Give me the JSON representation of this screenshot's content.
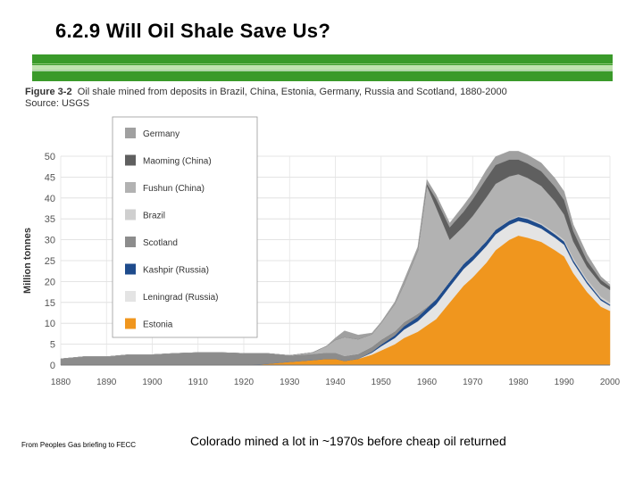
{
  "slide": {
    "title": "6.2.9 Will Oil Shale Save Us?",
    "figure_number": "Figure 3-2",
    "figure_caption": "Oil shale mined from deposits in Brazil, China, Estonia, Germany, Russia and Scotland, 1880-2000",
    "source": "Source: USGS",
    "footnote": "From Peoples Gas briefing to FECC",
    "bottom_caption": "Colorado mined a lot in ~1970s before cheap oil returned",
    "accent_color": "#3a9a2a"
  },
  "chart_data": {
    "type": "area",
    "stacked": true,
    "title": "",
    "xlabel": "",
    "ylabel": "Million tonnes",
    "xlim": [
      1880,
      2000
    ],
    "ylim": [
      0,
      50
    ],
    "x_ticks": [
      "1880",
      "1890",
      "1900",
      "1910",
      "1920",
      "1930",
      "1940",
      "1950",
      "1960",
      "1970",
      "1980",
      "1990",
      "2000"
    ],
    "y_ticks": [
      "0",
      "5",
      "10",
      "15",
      "20",
      "25",
      "30",
      "35",
      "40",
      "45",
      "50"
    ],
    "grid": true,
    "legend_position": "top-left",
    "x": [
      1880,
      1885,
      1890,
      1895,
      1900,
      1905,
      1910,
      1915,
      1920,
      1925,
      1930,
      1935,
      1938,
      1940,
      1942,
      1945,
      1948,
      1950,
      1953,
      1955,
      1958,
      1960,
      1962,
      1965,
      1968,
      1970,
      1973,
      1975,
      1978,
      1980,
      1982,
      1985,
      1988,
      1990,
      1992,
      1995,
      1998,
      2000
    ],
    "series": [
      {
        "name": "Estonia",
        "color": "#f0961e",
        "values": [
          0,
          0,
          0,
          0,
          0,
          0,
          0,
          0,
          0,
          0.3,
          0.8,
          1.2,
          1.5,
          1.5,
          1.0,
          1.5,
          2.5,
          3.5,
          5.0,
          6.5,
          8.0,
          9.5,
          11.0,
          15.0,
          19.0,
          21.0,
          24.5,
          27.5,
          30.0,
          31.0,
          30.5,
          29.5,
          27.5,
          26.0,
          22.0,
          17.5,
          14.0,
          13.0
        ]
      },
      {
        "name": "Leningrad (Russia)",
        "color": "#e4e4e4",
        "values": [
          0,
          0,
          0,
          0,
          0,
          0,
          0,
          0,
          0,
          0,
          0,
          0,
          0,
          0,
          0,
          0,
          0.5,
          1.0,
          1.5,
          2.0,
          2.5,
          3.0,
          3.5,
          3.8,
          4.0,
          4.0,
          4.0,
          3.8,
          3.6,
          3.5,
          3.5,
          3.2,
          3.0,
          2.8,
          2.5,
          2.0,
          1.5,
          1.2
        ]
      },
      {
        "name": "Kashpir (Russia)",
        "color": "#1e4b8c",
        "values": [
          0,
          0,
          0,
          0,
          0,
          0,
          0,
          0,
          0,
          0,
          0,
          0,
          0,
          0,
          0,
          0,
          0.2,
          0.4,
          0.6,
          0.8,
          1.0,
          1.1,
          1.2,
          1.2,
          1.2,
          1.2,
          1.2,
          1.1,
          1.0,
          1.0,
          1.0,
          0.9,
          0.8,
          0.8,
          0.6,
          0.5,
          0.4,
          0.3
        ]
      },
      {
        "name": "Scotland",
        "color": "#8c8c8c",
        "values": [
          1.5,
          2.0,
          2.0,
          2.5,
          2.5,
          2.8,
          3.0,
          3.0,
          2.8,
          2.5,
          1.5,
          1.5,
          1.5,
          1.5,
          1.2,
          1.2,
          1.2,
          1.2,
          1.0,
          1.0,
          0.8,
          0.3,
          0.1,
          0,
          0,
          0,
          0,
          0,
          0,
          0,
          0,
          0,
          0,
          0,
          0,
          0,
          0,
          0
        ]
      },
      {
        "name": "Brazil",
        "color": "#cfcfcf",
        "values": [
          0,
          0,
          0,
          0,
          0,
          0,
          0,
          0,
          0,
          0,
          0,
          0,
          0,
          0,
          0,
          0,
          0,
          0,
          0,
          0,
          0,
          0,
          0,
          0,
          0,
          0,
          0,
          0,
          0.1,
          0.2,
          0.3,
          0.3,
          0.4,
          0.4,
          0.5,
          0.5,
          0.5,
          0.5
        ]
      },
      {
        "name": "Fushun (China)",
        "color": "#b2b2b2",
        "values": [
          0,
          0,
          0,
          0,
          0,
          0,
          0,
          0,
          0,
          0,
          0,
          0.3,
          1.5,
          3.0,
          4.5,
          3.5,
          3.0,
          4.0,
          6.5,
          9.0,
          15.0,
          29.0,
          22.0,
          10.0,
          9.0,
          9.5,
          10.5,
          11.0,
          10.5,
          10.0,
          9.5,
          9.0,
          7.5,
          6.0,
          4.0,
          3.0,
          3.0,
          3.0
        ]
      },
      {
        "name": "Maoming (China)",
        "color": "#5f5f5f",
        "values": [
          0,
          0,
          0,
          0,
          0,
          0,
          0,
          0,
          0,
          0,
          0,
          0,
          0,
          0,
          0,
          0,
          0,
          0,
          0,
          0,
          0,
          0.5,
          2.0,
          3.0,
          3.5,
          4.0,
          4.5,
          4.5,
          4.0,
          3.5,
          3.5,
          3.5,
          3.5,
          3.5,
          2.5,
          1.5,
          1.0,
          0.8
        ]
      },
      {
        "name": "Germany",
        "color": "#a0a0a0",
        "values": [
          0,
          0,
          0,
          0,
          0,
          0,
          0,
          0,
          0,
          0,
          0,
          0,
          0,
          0.5,
          1.5,
          1.0,
          0.3,
          0.2,
          0.5,
          1.0,
          1.0,
          1.0,
          1.0,
          1.0,
          1.5,
          1.5,
          2.0,
          2.0,
          2.0,
          2.0,
          2.0,
          2.0,
          2.0,
          2.0,
          1.5,
          1.5,
          0.8,
          0.5
        ]
      }
    ]
  }
}
